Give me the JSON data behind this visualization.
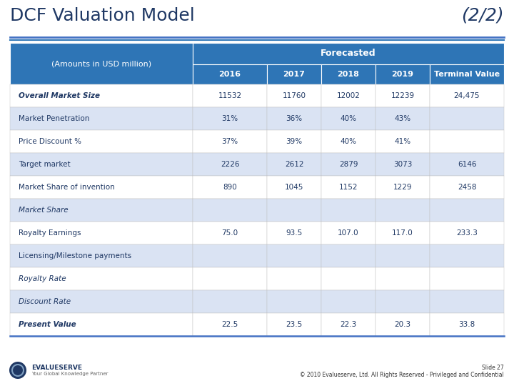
{
  "title": "DCF Valuation Model",
  "subtitle": "(2/2)",
  "bg_color": "#ffffff",
  "title_color": "#1f3864",
  "header_bg": "#2e75b6",
  "subheader_bg": "#2e75b6",
  "row_alt_color": "#dae3f3",
  "row_normal_color": "#ffffff",
  "col_header": "(Amounts in USD million)",
  "forecasted_label": "Forecasted",
  "columns": [
    "2016",
    "2017",
    "2018",
    "2019",
    "Terminal Value"
  ],
  "rows": [
    {
      "label": "Overall Market Size",
      "bold": true,
      "italic": true,
      "values": [
        "11532",
        "11760",
        "12002",
        "12239",
        "24,475"
      ],
      "style": "white"
    },
    {
      "label": "Market Penetration",
      "bold": false,
      "italic": false,
      "values": [
        "31%",
        "36%",
        "40%",
        "43%",
        ""
      ],
      "style": "alt"
    },
    {
      "label": "Price Discount %",
      "bold": false,
      "italic": false,
      "values": [
        "37%",
        "39%",
        "40%",
        "41%",
        ""
      ],
      "style": "white"
    },
    {
      "label": "Target market",
      "bold": false,
      "italic": false,
      "values": [
        "2226",
        "2612",
        "2879",
        "3073",
        "6146"
      ],
      "style": "alt"
    },
    {
      "label": "Market Share of invention",
      "bold": false,
      "italic": false,
      "values": [
        "890",
        "1045",
        "1152",
        "1229",
        "2458"
      ],
      "style": "white"
    },
    {
      "label": "Market Share",
      "bold": false,
      "italic": true,
      "values": [
        "",
        "",
        "",
        "",
        ""
      ],
      "style": "alt"
    },
    {
      "label": "Royalty Earnings",
      "bold": false,
      "italic": false,
      "values": [
        "75.0",
        "93.5",
        "107.0",
        "117.0",
        "233.3"
      ],
      "style": "white"
    },
    {
      "label": "Licensing/Milestone payments",
      "bold": false,
      "italic": false,
      "values": [
        "",
        "",
        "",
        "",
        ""
      ],
      "style": "alt"
    },
    {
      "label": "Royalty Rate",
      "bold": false,
      "italic": true,
      "values": [
        "",
        "",
        "",
        "",
        ""
      ],
      "style": "white"
    },
    {
      "label": "Discount Rate",
      "bold": false,
      "italic": true,
      "values": [
        "",
        "",
        "",
        "",
        ""
      ],
      "style": "alt"
    },
    {
      "label": "Present Value",
      "bold": true,
      "italic": true,
      "values": [
        "22.5",
        "23.5",
        "22.3",
        "20.3",
        "33.8"
      ],
      "style": "white"
    }
  ],
  "footer_left1": "EVALUESERVE",
  "footer_left2": "Your Global Knowledge Partner",
  "footer_right_line1": "Slide 27",
  "footer_right_line2": "© 2010 Evalueserve, Ltd. All Rights Reserved - Privileged and Confidential",
  "title_fontsize": 18,
  "subtitle_fontsize": 18
}
